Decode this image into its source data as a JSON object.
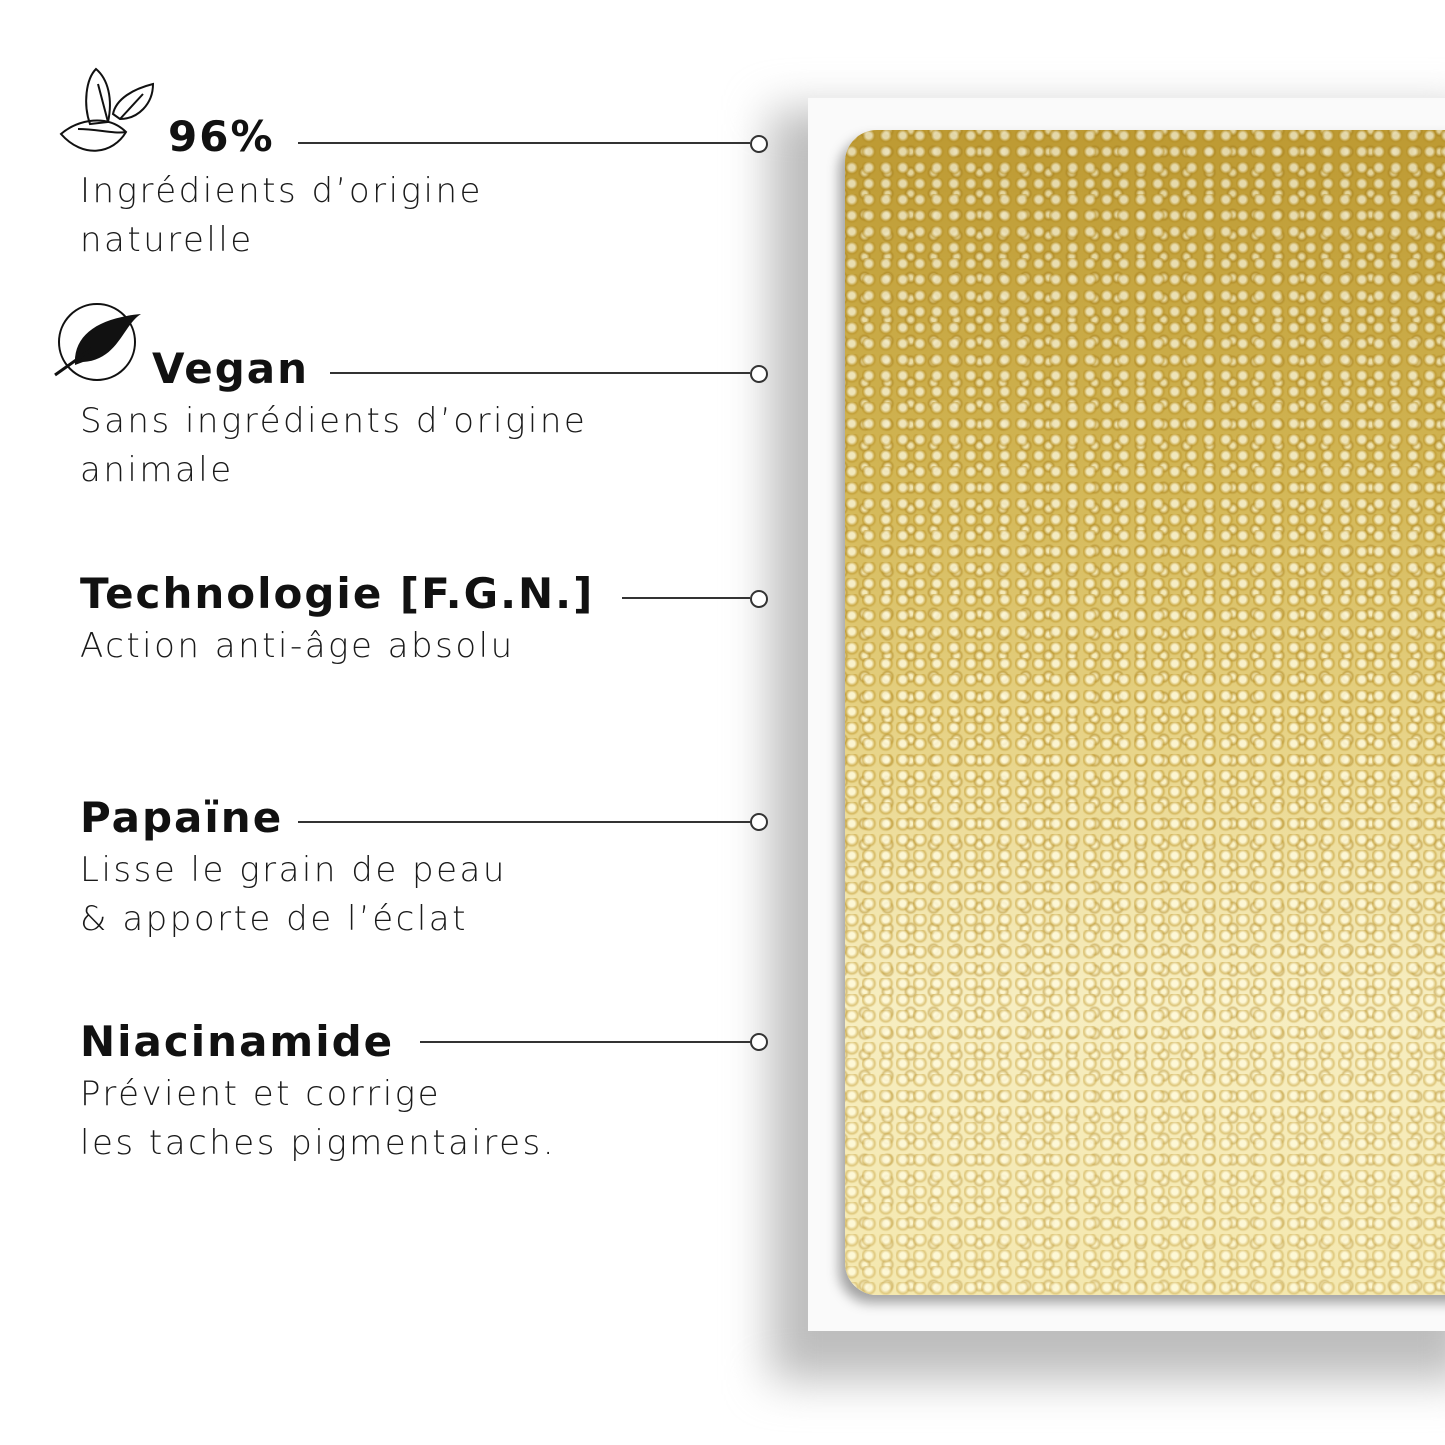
{
  "features": [
    {
      "title": "96%",
      "subtitle": [
        "Ingrédients d’origine",
        "naturelle"
      ],
      "icon": "leaves-icon"
    },
    {
      "title": "Vegan",
      "subtitle": [
        "Sans ingrédients d’origine",
        "animale"
      ],
      "icon": "vegan-leaf-icon"
    },
    {
      "title": "Technologie [F.G.N.]",
      "subtitle": [
        "Action anti-âge absolu"
      ]
    },
    {
      "title": "Papaïne",
      "subtitle": [
        "Lisse le grain de peau",
        "& apporte de l’éclat"
      ]
    },
    {
      "title": "Niacinamide",
      "subtitle": [
        "Prévient et corrige",
        "les taches pigmentaires."
      ]
    }
  ],
  "colors": {
    "gold": "#d8bc5a",
    "text": "#111111"
  }
}
